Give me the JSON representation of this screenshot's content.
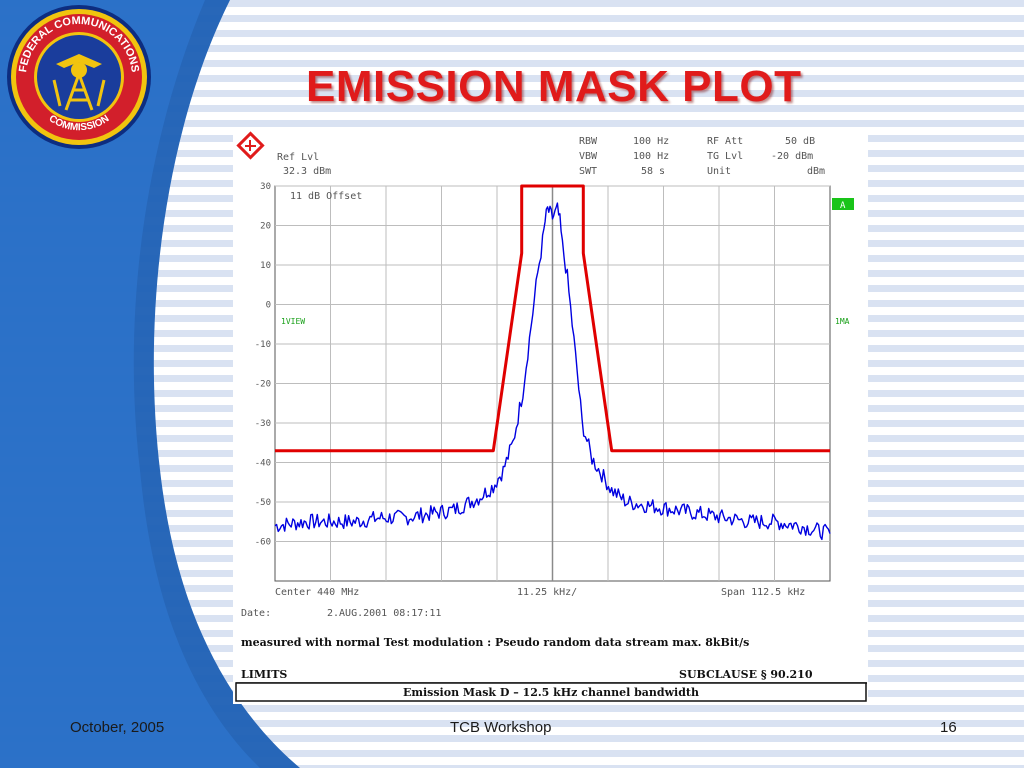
{
  "slide": {
    "title": "EMISSION MASK PLOT",
    "footer_left": "October, 2005",
    "footer_center": "TCB Workshop",
    "footer_right": "16"
  },
  "seal": {
    "text_top": "FEDERAL COMMUNICATIONS",
    "text_bottom": "COMMISSION"
  },
  "analyzer": {
    "ref_lvl_label": "Ref Lvl",
    "ref_lvl_value": "32.3 dBm",
    "rbw_label": "RBW",
    "rbw_value": "100 Hz",
    "vbw_label": "VBW",
    "vbw_value": "100 Hz",
    "swt_label": "SWT",
    "swt_value": "58 s",
    "rfatt_label": "RF Att",
    "rfatt_value": "50 dB",
    "tglvl_label": "TG Lvl",
    "tglvl_value": "-20 dBm",
    "unit_label": "Unit",
    "unit_value": "dBm",
    "offset_note": "11 dB Offset",
    "marker_a": "A",
    "left_trace_label": "1VIEW",
    "right_trace_label": "1MA",
    "center_label": "Center 440 MHz",
    "div_label": "11.25 kHz/",
    "span_label": "Span 112.5 kHz",
    "date_label": "Date:",
    "date_value": "2.AUG.2001  08:17:11"
  },
  "caption": {
    "measured": "measured with normal Test modulation : Pseudo random data stream max. 8kBit/s",
    "limits": "LIMITS",
    "subclause": "SUBCLAUSE § 90.210",
    "mask_description": "Emission Mask D – 12.5 kHz channel bandwidth"
  },
  "chart_data": {
    "type": "line",
    "title": "",
    "xlabel": "",
    "ylabel": "",
    "xlim": [
      -56.25,
      56.25
    ],
    "ylim": [
      -70,
      30
    ],
    "x_unit": "kHz offset from 440 MHz",
    "y_unit": "dBm",
    "yticks": [
      30,
      20,
      10,
      0,
      -10,
      -20,
      -30,
      -40,
      -50,
      -60
    ],
    "grid": true,
    "series": [
      {
        "name": "",
        "color": "#e00000",
        "x": [
          -56.25,
          -12.0,
          -6.25,
          -6.25,
          -3.0,
          3.0,
          6.25,
          6.25,
          12.0,
          56.25
        ],
        "y": [
          -37,
          -37,
          13,
          30,
          30,
          30,
          30,
          13,
          -37,
          -37
        ]
      },
      {
        "name": "",
        "color": "#0000e0",
        "x": [
          -56.25,
          -50,
          -45,
          -40,
          -35,
          -30,
          -25,
          -20,
          -15,
          -12,
          -10,
          -8,
          -6,
          -5,
          -4,
          -3,
          -2,
          -1.5,
          -1,
          -0.5,
          0,
          0.5,
          1,
          1.5,
          2,
          3,
          4,
          5,
          6,
          8,
          10,
          12,
          15,
          20,
          25,
          30,
          35,
          40,
          45,
          50,
          56.25
        ],
        "y": [
          -56,
          -55,
          -55,
          -55,
          -54,
          -54,
          -53,
          -52,
          -49,
          -46,
          -42,
          -35,
          -22,
          -12,
          -2,
          8,
          16,
          21,
          24,
          23,
          22,
          23,
          24,
          21,
          15,
          7,
          -5,
          -17,
          -30,
          -39,
          -43,
          -47,
          -50,
          -51,
          -52,
          -53,
          -54,
          -55,
          -55,
          -56,
          -58
        ]
      }
    ]
  },
  "colors": {
    "title": "#e01b1b",
    "mask_line": "#e00000",
    "trace_line": "#0000e0",
    "stripe": "#b9cbe7",
    "wave": "#1c5fb4",
    "marker_green": "#19c419"
  }
}
